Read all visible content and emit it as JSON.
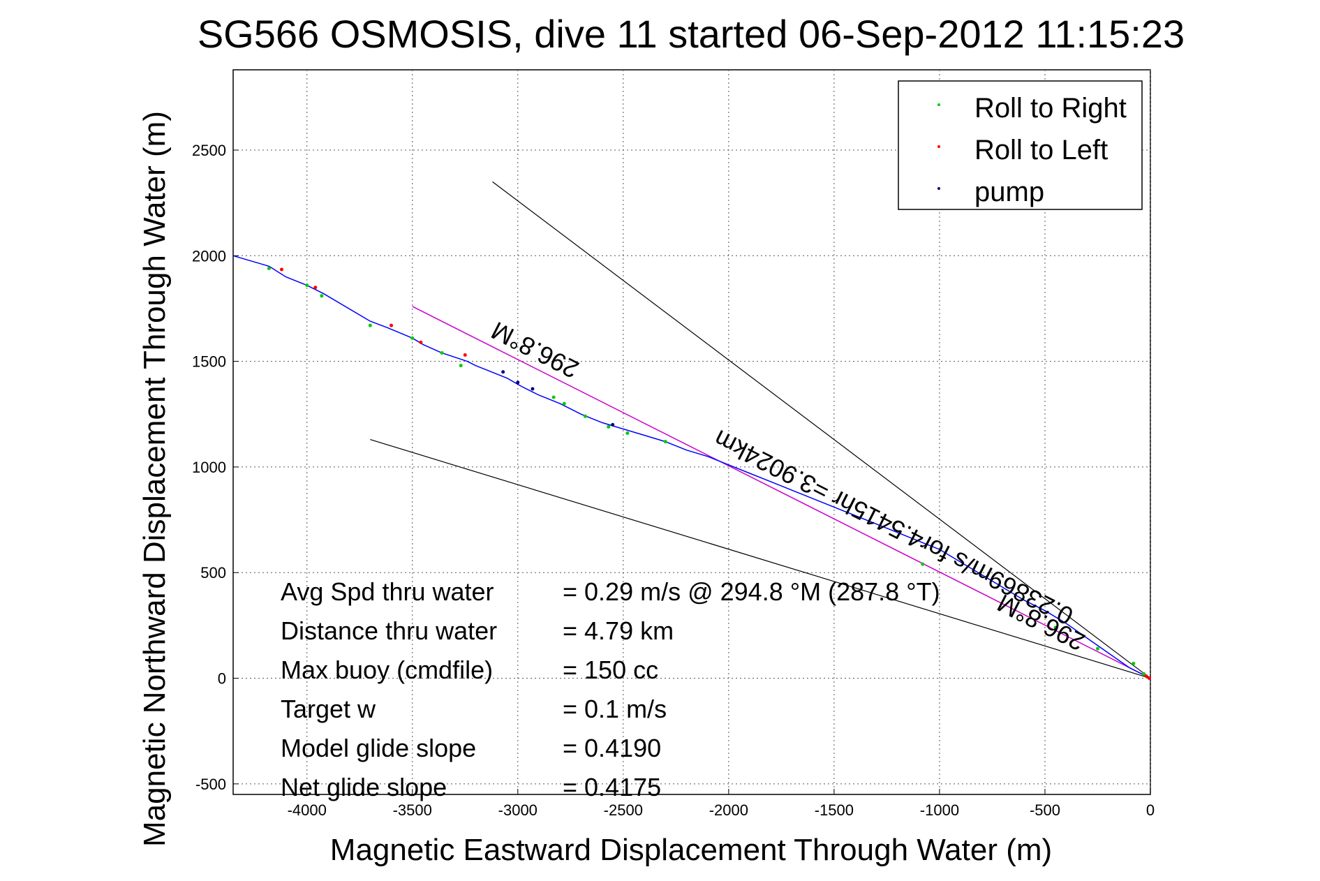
{
  "chart_data": {
    "type": "line",
    "title": "SG566 OSMOSIS, dive 11 started 06-Sep-2012 11:15:23",
    "xlabel": "Magnetic Eastward Displacement Through Water (m)",
    "ylabel": "Magnetic Northward Displacement Through Water (m)",
    "xlim": [
      -4350,
      0
    ],
    "ylim": [
      -550,
      2880
    ],
    "xticks": [
      -4000,
      -3500,
      -3000,
      -2500,
      -2000,
      -1500,
      -1000,
      -500,
      0
    ],
    "yticks": [
      -500,
      0,
      500,
      1000,
      1500,
      2000,
      2500
    ],
    "grid": true,
    "legend_placement": "top-right",
    "legend": [
      {
        "label": "Roll to Right",
        "color": "#00cc00"
      },
      {
        "label": "Roll to Left",
        "color": "#ff0000"
      },
      {
        "label": "pump",
        "color": "#000080"
      }
    ],
    "track": {
      "x": [
        -4350,
        -4180,
        -4100,
        -4000,
        -3920,
        -3700,
        -3620,
        -3500,
        -3450,
        -3360,
        -3300,
        -3240,
        -3200,
        -3150,
        -3050,
        -2980,
        -2900,
        -2800,
        -2700,
        -2600,
        -2500,
        -2400,
        -2300,
        -2200,
        -2100,
        -2000,
        -1900,
        -1800,
        -1700,
        -1600,
        -1500,
        -1400,
        -1300,
        -1200,
        -1100,
        -1000,
        -900,
        -800,
        -700,
        -600,
        -500,
        -400,
        -300,
        -200,
        -100,
        0
      ],
      "y": [
        2000,
        1950,
        1900,
        1860,
        1820,
        1690,
        1660,
        1610,
        1580,
        1540,
        1520,
        1500,
        1480,
        1460,
        1420,
        1380,
        1340,
        1300,
        1250,
        1210,
        1180,
        1150,
        1120,
        1080,
        1050,
        1010,
        970,
        930,
        890,
        850,
        810,
        770,
        730,
        690,
        650,
        610,
        550,
        490,
        430,
        370,
        320,
        260,
        190,
        120,
        50,
        0
      ]
    },
    "roll_right": {
      "x": [
        -4180,
        -4000,
        -3930,
        -3700,
        -3500,
        -3360,
        -3270,
        -2830,
        -2780,
        -2680,
        -2570,
        -2480,
        -2300,
        -1080,
        -450,
        -250,
        -80,
        -30
      ],
      "y": [
        1940,
        1860,
        1810,
        1670,
        1610,
        1540,
        1480,
        1330,
        1300,
        1240,
        1190,
        1160,
        1120,
        540,
        240,
        140,
        70,
        20
      ]
    },
    "roll_left": {
      "x": [
        -4120,
        -3960,
        -3600,
        -3460,
        -3250,
        -20,
        -5
      ],
      "y": [
        1935,
        1850,
        1670,
        1590,
        1530,
        10,
        0
      ]
    },
    "pump": {
      "x": [
        -3070,
        -3000,
        -2930,
        -2550
      ],
      "y": [
        1450,
        1400,
        1370,
        1200
      ]
    },
    "heading_line": {
      "x": [
        -3500,
        0
      ],
      "y": [
        1760,
        0
      ],
      "color": "#cc00cc"
    },
    "cone_lines": [
      {
        "x": [
          -3120,
          0
        ],
        "y": [
          2350,
          0
        ]
      },
      {
        "x": [
          -3700,
          0
        ],
        "y": [
          1130,
          0
        ]
      }
    ],
    "annotations": [
      {
        "text": "296.8°M",
        "x": -2900,
        "y": 1590,
        "angle": 207
      },
      {
        "text": "0.23869m/s for4.5415hr =3.9024km",
        "x": -1200,
        "y": 750,
        "angle": 207
      },
      {
        "text": "296.8°M",
        "x": -500,
        "y": 300,
        "angle": 207
      }
    ],
    "stats": [
      {
        "label": "Avg Spd thru water",
        "value": "=  0.29 m/s @ 294.8 °M (287.8 °T)"
      },
      {
        "label": "Distance thru water",
        "value": "=  4.79 km"
      },
      {
        "label": "Max buoy (cmdfile)",
        "value": "= 150 cc"
      },
      {
        "label": "Target w",
        "value": "= 0.1 m/s"
      },
      {
        "label": "Model glide slope",
        "value": "= 0.4190"
      },
      {
        "label": "Net glide slope",
        "value": "= 0.4175"
      }
    ]
  }
}
